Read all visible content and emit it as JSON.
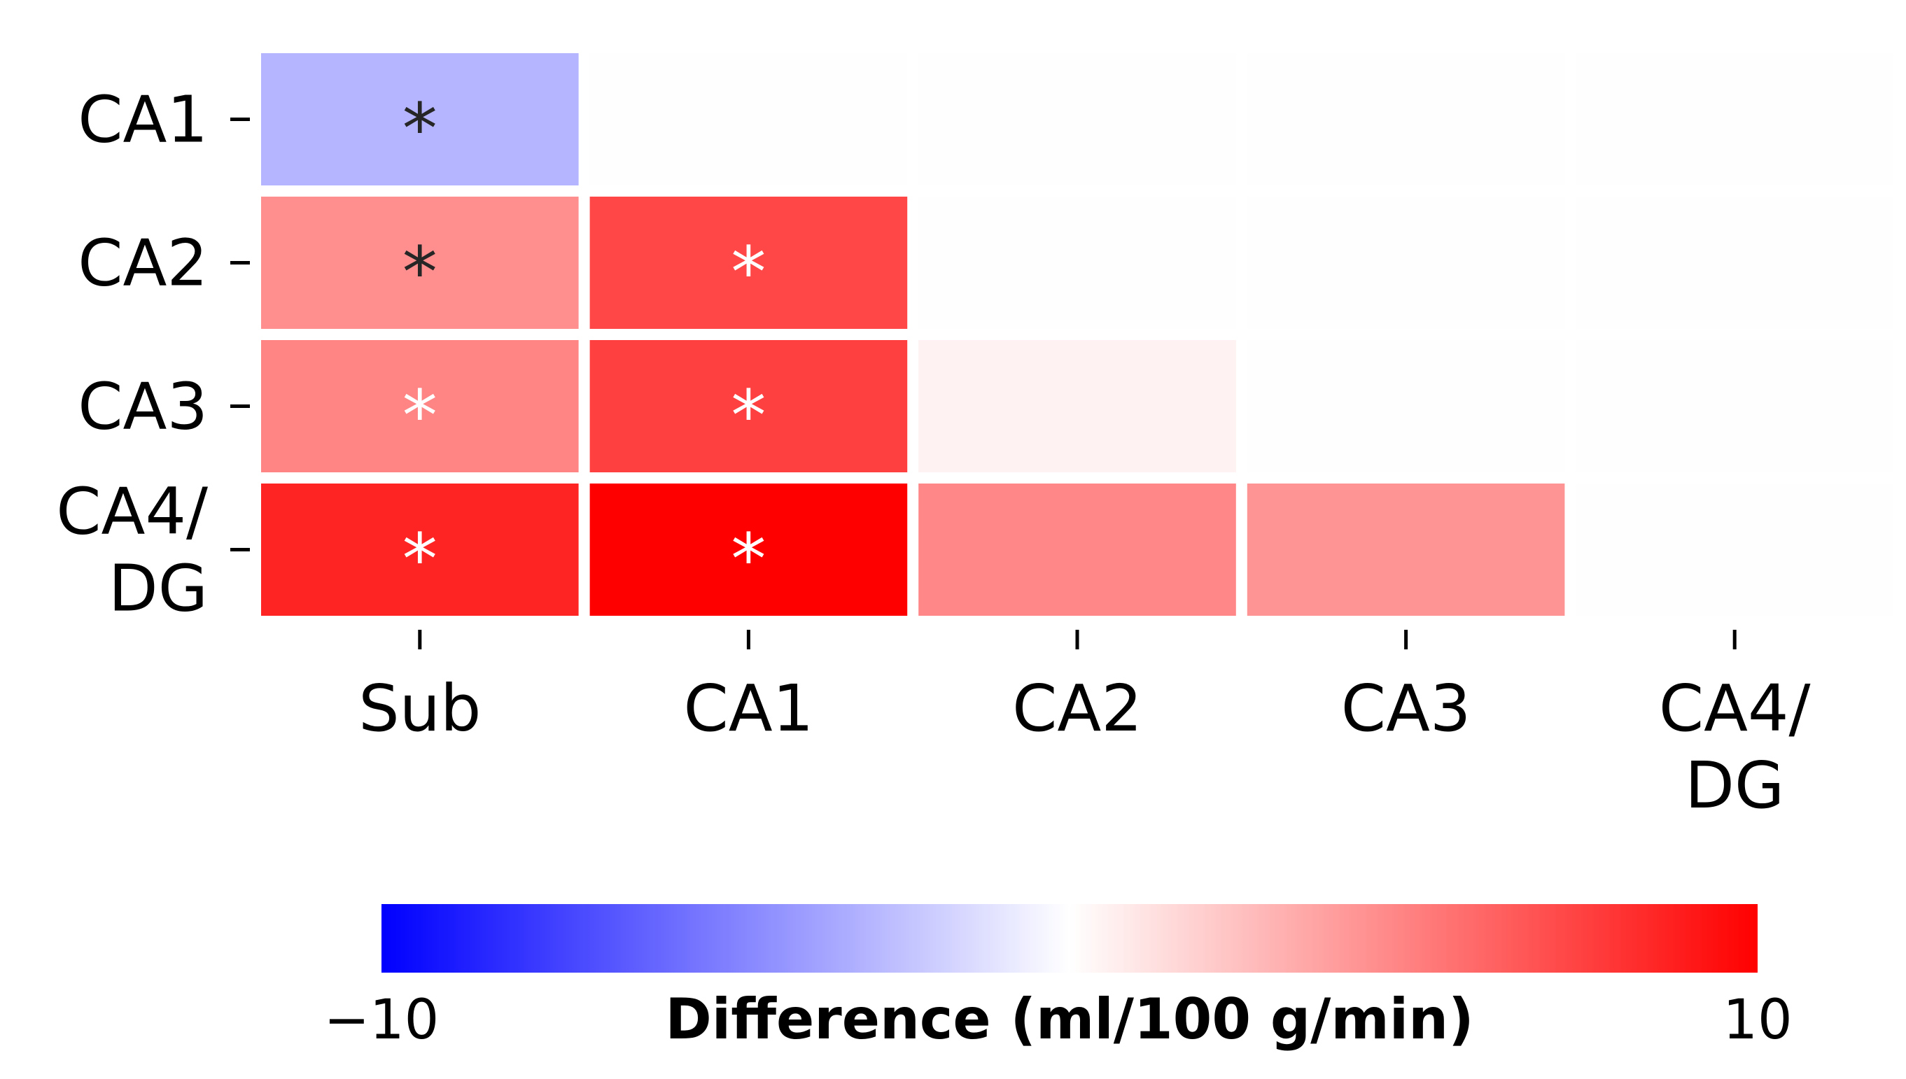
{
  "chart_data": {
    "type": "heatmap",
    "x_labels": [
      [
        "Sub"
      ],
      [
        "CA1"
      ],
      [
        "CA2"
      ],
      [
        "CA3"
      ],
      [
        "CA4/",
        "DG"
      ]
    ],
    "y_labels": [
      [
        "CA1"
      ],
      [
        "CA2"
      ],
      [
        "CA3"
      ],
      [
        "CA4/",
        "DG"
      ]
    ],
    "values": [
      [
        -2.9,
        0.02,
        0.02,
        0.02,
        0.02
      ],
      [
        4.4,
        7.2,
        0.02,
        0.02,
        0.02
      ],
      [
        4.8,
        7.5,
        0.5,
        0.02,
        0.02
      ],
      [
        8.6,
        10.0,
        4.7,
        4.2,
        0.02
      ]
    ],
    "significant": [
      [
        true,
        false,
        false,
        false,
        false
      ],
      [
        true,
        true,
        false,
        false,
        false
      ],
      [
        true,
        true,
        false,
        false,
        false
      ],
      [
        true,
        true,
        false,
        false,
        false
      ]
    ],
    "annotation_symbol": "*",
    "star_colors": [
      [
        "#262626",
        null,
        null,
        null,
        null
      ],
      [
        "#262626",
        "#ffffff",
        null,
        null,
        null
      ],
      [
        "#ffffff",
        "#ffffff",
        null,
        null,
        null
      ],
      [
        "#ffffff",
        "#ffffff",
        null,
        null,
        null
      ]
    ],
    "colormap": "bwr",
    "vmin": -10,
    "vmax": 10,
    "colorbar": {
      "label": "Difference (ml/100 g/min)",
      "ticks": [
        "−10",
        "10"
      ],
      "orientation": "horizontal",
      "placement": "bottom"
    },
    "colors": {
      "low": "#0000ff",
      "mid": "#ffffff",
      "high": "#ff0000"
    }
  }
}
